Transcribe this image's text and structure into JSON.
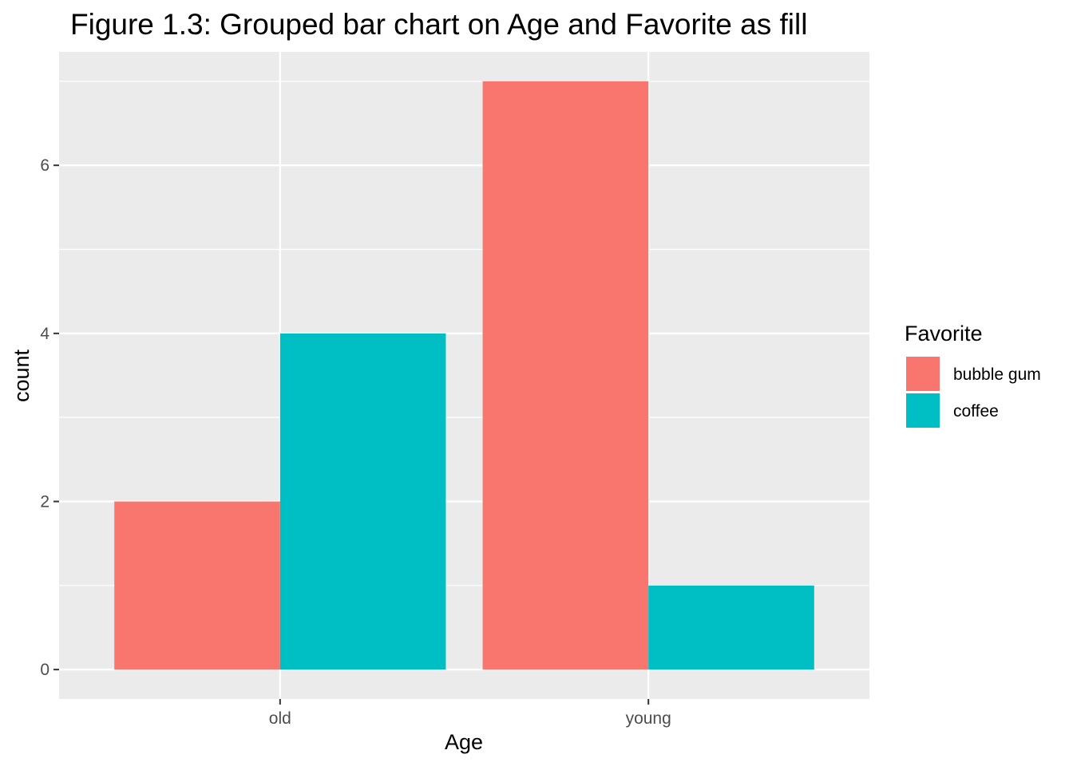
{
  "chart_data": {
    "type": "bar",
    "title": "Figure 1.3: Grouped bar chart on Age and Favorite as fill",
    "xlabel": "Age",
    "ylabel": "count",
    "categories": [
      "old",
      "young"
    ],
    "series": [
      {
        "name": "bubble gum",
        "color": "#F8766D",
        "values": [
          2,
          7
        ]
      },
      {
        "name": "coffee",
        "color": "#00BFC4",
        "values": [
          4,
          1
        ]
      }
    ],
    "ylim": [
      -0.35,
      7.35
    ],
    "yticks": [
      0,
      2,
      4,
      6
    ],
    "grid": true,
    "legend": {
      "title": "Favorite",
      "position": "right"
    },
    "panel_color": "#EBEBEB"
  }
}
